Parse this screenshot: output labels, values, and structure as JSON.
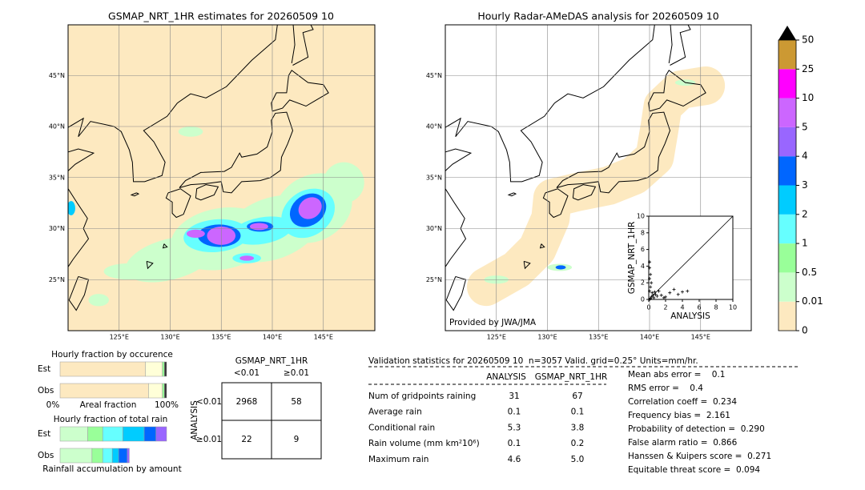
{
  "map_extent": {
    "lon_range": [
      120,
      150
    ],
    "lat_range": [
      20,
      50
    ],
    "lat_ticks": [
      {
        "value": 45,
        "label": "45°N"
      },
      {
        "value": 40,
        "label": "40°N"
      },
      {
        "value": 35,
        "label": "35°N"
      },
      {
        "value": 30,
        "label": "30°N"
      },
      {
        "value": 25,
        "label": "25°N"
      }
    ],
    "lon_ticks": [
      {
        "value": 125,
        "label": "125°E"
      },
      {
        "value": 130,
        "label": "130°E"
      },
      {
        "value": 135,
        "label": "135°E"
      },
      {
        "value": 140,
        "label": "140°E"
      },
      {
        "value": 145,
        "label": "145°E"
      }
    ]
  },
  "left_map": {
    "title": "GSMAP_NRT_1HR estimates for 20260509 10"
  },
  "right_map": {
    "title": "Hourly Radar-AMeDAS analysis for 20260509 10",
    "credit": "Provided by JWA/JMA"
  },
  "colorbar": {
    "ticks": [
      0,
      0.01,
      0.5,
      1,
      2,
      3,
      4,
      5,
      10,
      25,
      50
    ],
    "colors": [
      "#fde9c0",
      "#ccffcc",
      "#99ff99",
      "#66ffff",
      "#00ccff",
      "#0066ff",
      "#9966ff",
      "#cc66ff",
      "#ff00ff",
      "#cc9933"
    ]
  },
  "scatter": {
    "xlabel": "ANALYSIS",
    "ylabel": "GSMAP_NRT_1HR",
    "xlim": [
      0,
      10
    ],
    "ylim": [
      0,
      10
    ],
    "xticks": [
      0,
      2,
      4,
      6,
      8,
      10
    ],
    "yticks": [
      0,
      2,
      4,
      6,
      8,
      10
    ],
    "x": [
      0.1,
      0.1,
      0.2,
      0.1,
      0.3,
      0.2,
      0.1,
      0.4,
      0.5,
      0.3,
      0.6,
      0.8,
      1.0,
      1.2,
      1.5,
      2.0,
      2.5,
      3.0,
      3.5,
      4.0,
      4.6,
      0.2,
      0.7,
      1.8,
      0.1
    ],
    "y": [
      4.5,
      3.8,
      3.0,
      2.5,
      2.0,
      1.5,
      1.0,
      0.8,
      0.5,
      0.3,
      0.2,
      0.6,
      0.4,
      1.0,
      0.5,
      0.3,
      0.8,
      1.2,
      0.6,
      0.9,
      1.0,
      0.1,
      0.9,
      0.2,
      0.0
    ]
  },
  "occurrence": {
    "title": "Hourly fraction by occurence",
    "rows": [
      "Est",
      "Obs"
    ],
    "axis_left": "0%",
    "axis_mid": "Areal fraction",
    "axis_right": "100%",
    "colors": [
      "#fde9c0",
      "#ffffd8",
      "#99ff99",
      "#333333"
    ],
    "segments": [
      [
        80,
        16,
        2,
        2
      ],
      [
        83,
        13,
        2,
        2
      ]
    ]
  },
  "total_rain": {
    "title": "Hourly fraction of total rain",
    "footer": "Rainfall accumulation by amount",
    "rows": [
      "Est",
      "Obs"
    ],
    "colors": [
      "#ccffcc",
      "#99ff99",
      "#66ffff",
      "#00ccff",
      "#0066ff",
      "#9966ff"
    ],
    "segments": [
      [
        26,
        14,
        19,
        20,
        11,
        10
      ],
      [
        30,
        10,
        9,
        6,
        8,
        2
      ]
    ]
  },
  "contingency": {
    "title": "GSMAP_NRT_1HR",
    "col_headers": [
      "<0.01",
      "≥0.01"
    ],
    "row_label": "ANALYSIS",
    "row_headers": [
      "<0.01",
      "≥0.01"
    ],
    "cells": [
      [
        "2968",
        "58"
      ],
      [
        "22",
        "9"
      ]
    ]
  },
  "validation": {
    "header": "Validation statistics for 20260509 10  n=3057 Valid. grid=0.25° Units=mm/hr.",
    "columns": [
      "ANALYSIS",
      "GSMAP_NRT_1HR"
    ],
    "rows": [
      {
        "label": "Num of gridpoints raining",
        "values": [
          "31",
          "67"
        ]
      },
      {
        "label": "Average rain",
        "values": [
          "0.1",
          "0.1"
        ]
      },
      {
        "label": "Conditional rain",
        "values": [
          "5.3",
          "3.8"
        ]
      },
      {
        "label": "Rain volume (mm km²10⁶)",
        "values": [
          "0.1",
          "0.2"
        ]
      },
      {
        "label": "Maximum rain",
        "values": [
          "4.6",
          "5.0"
        ]
      }
    ],
    "scores": [
      "Mean abs error =    0.1",
      "RMS error =    0.4",
      "Correlation coeff =  0.234",
      "Frequency bias =  2.161",
      "Probability of detection =  0.290",
      "False alarm ratio =  0.866",
      "Hanssen & Kuipers score =  0.271",
      "Equitable threat score =  0.094"
    ]
  }
}
